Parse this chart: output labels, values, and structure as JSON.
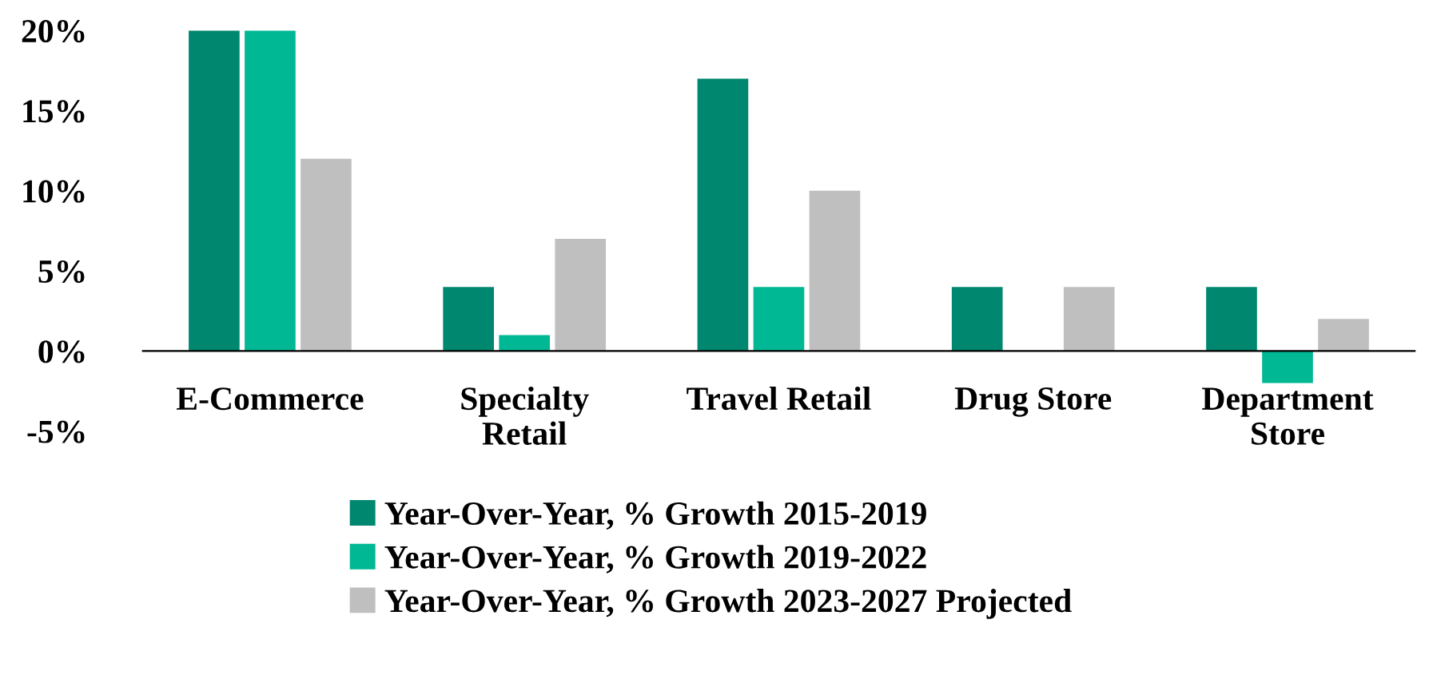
{
  "chart_data": {
    "type": "bar",
    "categories": [
      "E-Commerce",
      "Specialty\nRetail",
      "Travel Retail",
      "Drug Store",
      "Department\nStore"
    ],
    "series": [
      {
        "name": "Year-Over-Year, % Growth 2015-2019",
        "color": "#00876f",
        "values": [
          20,
          4,
          17,
          4,
          4
        ]
      },
      {
        "name": "Year-Over-Year, % Growth 2019-2022",
        "color": "#00b894",
        "values": [
          20,
          1,
          4,
          null,
          -2
        ]
      },
      {
        "name": "Year-Over-Year, % Growth 2023-2027 Projected",
        "color": "#bfbfbf",
        "values": [
          12,
          7,
          10,
          4,
          2
        ]
      }
    ],
    "ylim": [
      -5,
      20
    ],
    "yticks": [
      {
        "value": -5,
        "label": "-5%"
      },
      {
        "value": 0,
        "label": "0%"
      },
      {
        "value": 5,
        "label": "5%"
      },
      {
        "value": 10,
        "label": "10%"
      },
      {
        "value": 15,
        "label": "15%"
      },
      {
        "value": 20,
        "label": "20%"
      }
    ],
    "grid": false,
    "legend": "bottom"
  }
}
